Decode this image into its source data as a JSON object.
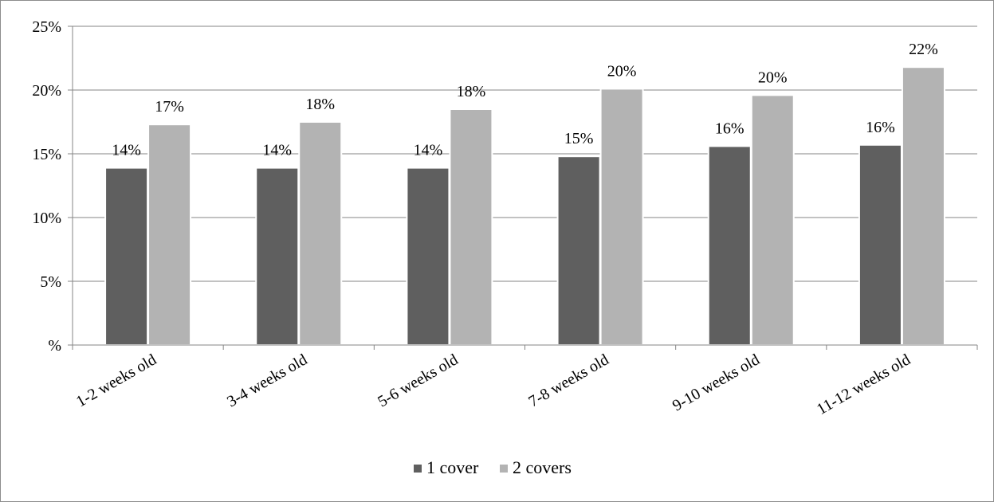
{
  "chart_data": {
    "type": "bar",
    "categories": [
      "1-2 weeks old",
      "3-4 weeks old",
      "5-6 weeks old",
      "7-8 weeks old",
      "9-10 weeks old",
      "11-12 weeks old"
    ],
    "series": [
      {
        "name": "1 cover",
        "color": "#5f5f5f",
        "values": [
          13.9,
          13.9,
          13.9,
          14.8,
          15.6,
          15.7
        ],
        "labels": [
          "14%",
          "14%",
          "14%",
          "15%",
          "16%",
          "16%"
        ]
      },
      {
        "name": "2 covers",
        "color": "#b3b3b3",
        "values": [
          17.3,
          17.5,
          18.5,
          20.1,
          19.6,
          21.8
        ],
        "labels": [
          "17%",
          "18%",
          "18%",
          "20%",
          "20%",
          "22%"
        ]
      }
    ],
    "ylim": [
      0,
      25
    ],
    "yticks": [
      0,
      5,
      10,
      15,
      20,
      25
    ],
    "ytick_labels": [
      "%",
      "5%",
      "10%",
      "15%",
      "20%",
      "25%"
    ],
    "grid": true,
    "legend_position": "bottom",
    "title": "",
    "xlabel": "",
    "ylabel": ""
  }
}
